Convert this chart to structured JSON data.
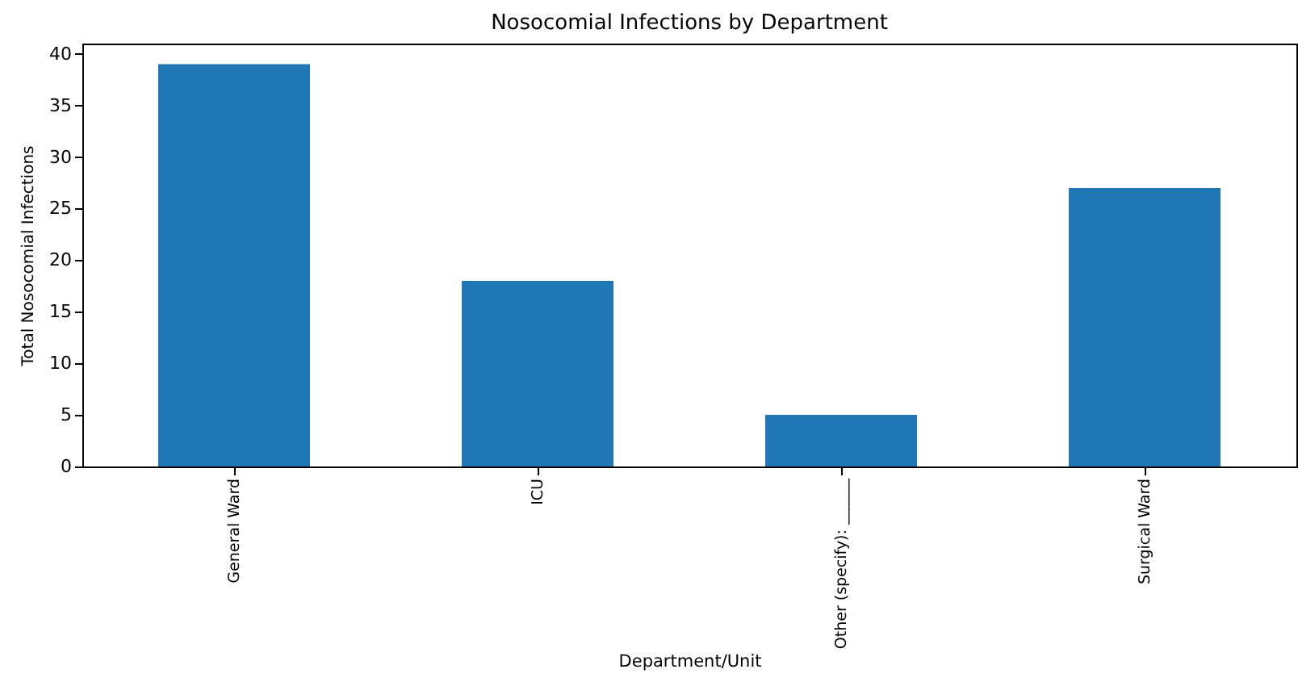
{
  "chart_data": {
    "type": "bar",
    "title": "Nosocomial Infections by Department",
    "xlabel": "Department/Unit",
    "ylabel": "Total Nosocomial Infections",
    "categories": [
      "General Ward",
      "ICU",
      "Other (specify): ______",
      "Surgical Ward"
    ],
    "values": [
      39,
      18,
      5,
      27
    ],
    "color": "#1f77b4",
    "ylim": [
      0,
      41
    ],
    "yticks": [
      0,
      5,
      10,
      15,
      20,
      25,
      30,
      35,
      40
    ],
    "grid": false
  }
}
